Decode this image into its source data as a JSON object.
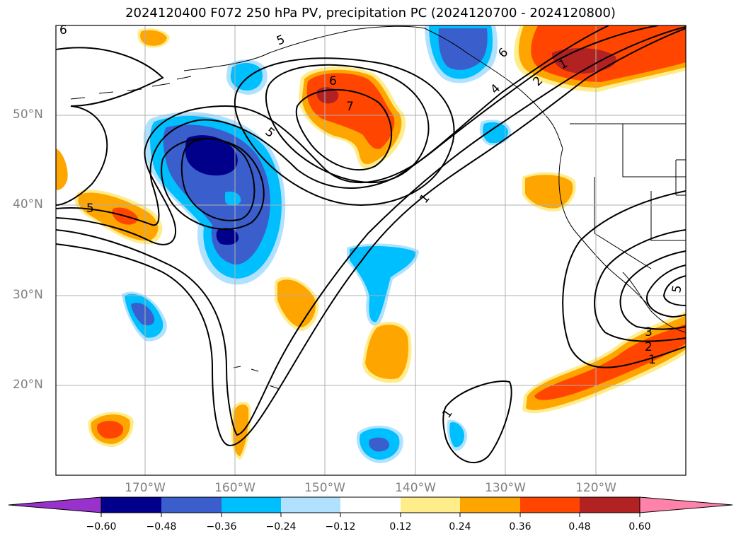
{
  "title": "2024120400 F072 250 hPa PV, precipitation PC (2024120700 - 2024120800)",
  "lat_labels": [
    "50°N",
    "40°N",
    "30°N",
    "20°N"
  ],
  "lon_labels": [
    "170°W",
    "160°W",
    "150°W",
    "140°W",
    "130°W",
    "120°W"
  ],
  "colorbar": {
    "ticks": [
      "−0.60",
      "−0.48",
      "−0.36",
      "−0.24",
      "−0.12",
      "0.12",
      "0.24",
      "0.36",
      "0.48",
      "0.60"
    ],
    "colors": [
      "#9932cc",
      "#00008b",
      "#3a5fcd",
      "#00bfff",
      "#b0e2ff",
      "#ffffff",
      "#ffec8b",
      "#ffa500",
      "#ff4500",
      "#b22222",
      "#ff82ab"
    ]
  },
  "contour_labels": [
    {
      "text": "6"
    },
    {
      "text": "5"
    },
    {
      "text": "5"
    },
    {
      "text": "6"
    },
    {
      "text": "7"
    },
    {
      "text": "6"
    },
    {
      "text": "4"
    },
    {
      "text": "2"
    },
    {
      "text": "1"
    },
    {
      "text": "5"
    },
    {
      "text": "1"
    },
    {
      "text": "1"
    },
    {
      "text": "3"
    },
    {
      "text": "2"
    },
    {
      "text": "1"
    },
    {
      "text": "5"
    }
  ],
  "chart_data": {
    "type": "map",
    "fields": [
      "250 hPa PV (contours)",
      "precipitation PC (shaded)"
    ],
    "lat_range": [
      10,
      60
    ],
    "lon_range": [
      -180,
      -110
    ],
    "gridlines": true
  }
}
